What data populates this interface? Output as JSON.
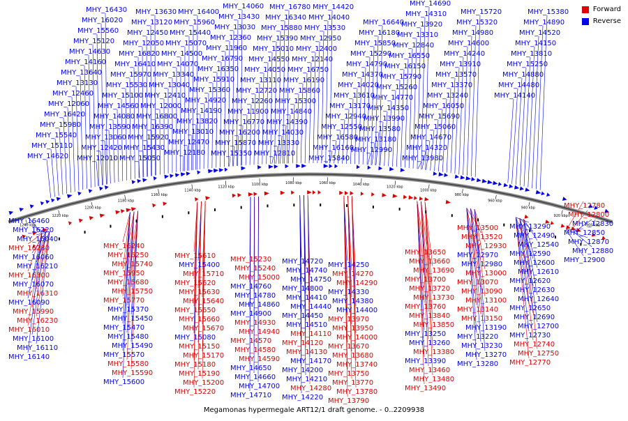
{
  "caption": "Megamonas hypermegale ART12/1 draft genome. - 0..2209938",
  "legend": {
    "forward_label": "Forward",
    "reverse_label": "Reverse",
    "forward_color": "#e00000",
    "reverse_color": "#0000ee"
  },
  "ticks": [
    "1240 kbp",
    "1220 kbp",
    "1200 kbp",
    "1180 kbp",
    "1160 kbp",
    "1140 kbp",
    "1120 kbp",
    "1100 kbp",
    "1080 kbp",
    "1060 kbp",
    "1040 kbp",
    "1020 kbp",
    "1000 kbp",
    "980 kbp",
    "960 kbp",
    "940 kbp",
    "920 kbp",
    "900 kbp"
  ],
  "top_labels": [
    "MHY_16430",
    "MHY_16020",
    "MHY_15560",
    "MHY_15120",
    "MHY_14630",
    "MHY_14160",
    "MHY_13640",
    "MHY_13130",
    "MHY_12460",
    "MHY_12060",
    "MHY_16420",
    "MHY_15980",
    "MHY_15540",
    "MHY_15110",
    "MHY_14620",
    "MHY_14090",
    "MHY_13630",
    "MHY_13120",
    "MHY_12450",
    "MHY_12050",
    "MHY_16820",
    "MHY_16410",
    "MHY_15970",
    "MHY_15530",
    "MHY_15100",
    "MHY_14560",
    "MHY_14080",
    "MHY_13590",
    "MHY_13060",
    "MHY_12420",
    "MHY_12010",
    "MHY_16810",
    "MHY_16400",
    "MHY_15960",
    "MHY_15440",
    "MHY_15070",
    "MHY_14500",
    "MHY_14070",
    "MHY_13340",
    "MHY_13040",
    "MHY_12410",
    "MHY_12000",
    "MHY_16800",
    "MHY_16390",
    "MHY_15920",
    "MHY_15430",
    "MHY_15050",
    "MHY_14460",
    "MHY_14060",
    "MHY_13430",
    "MHY_13030",
    "MHY_12360",
    "MHY_11960",
    "MHY_16790",
    "MHY_16350",
    "MHY_15910",
    "MHY_15360",
    "MHY_14920",
    "MHY_14190",
    "MHY_13820",
    "MHY_13010",
    "MHY_12470",
    "MHY_12180",
    "MHY_11710",
    "MHY_16780",
    "MHY_16340",
    "MHY_15880",
    "MHY_15390",
    "MHY_15010",
    "MHY_14550",
    "MHY_14050",
    "MHY_13110",
    "MHY_12720",
    "MHY_12260",
    "MHY_11900",
    "MHY_16770",
    "MHY_16200",
    "MHY_15870",
    "MHY_15350",
    "MHY_14850",
    "MHY_14420",
    "MHY_14040",
    "MHY_13530",
    "MHY_12950",
    "MHY_12400",
    "MHY_12140",
    "MHY_16750",
    "MHY_16190",
    "MHY_15860",
    "MHY_15300",
    "MHY_14840",
    "MHY_14390",
    "MHY_14030",
    "MHY_13330",
    "MHY_12810",
    "MHY_12320",
    "MHY_16640",
    "MHY_16180",
    "MHY_15850",
    "MHY_15290",
    "MHY_14790",
    "MHY_14370",
    "MHY_14020",
    "MHY_13610",
    "MHY_13170",
    "MHY_12940",
    "MHY_12550",
    "MHY_16580",
    "MHY_16160",
    "MHY_15840",
    "MHY_15420",
    "MHY_15090",
    "MHY_14690",
    "MHY_14310",
    "MHY_13920",
    "MHY_13310",
    "MHY_12840",
    "MHY_16550",
    "MHY_16150",
    "MHY_15790",
    "MHY_15260",
    "MHY_14770",
    "MHY_14350",
    "MHY_13990",
    "MHY_13580",
    "MHY_13180",
    "MHY_12990",
    "MHY_16130",
    "MHY_15720",
    "MHY_15320",
    "MHY_14980",
    "MHY_14600",
    "MHY_14240",
    "MHY_13910",
    "MHY_13570",
    "MHY_13370",
    "MHY_13240",
    "MHY_16050",
    "MHY_15690",
    "MHY_15060",
    "MHY_14670",
    "MHY_14320",
    "MHY_13980",
    "MHY_13440",
    "MHY_15380",
    "MHY_14890",
    "MHY_14520",
    "MHY_14150",
    "MHY_13810",
    "MHY_15250",
    "MHY_14880",
    "MHY_14480",
    "MHY_14140"
  ],
  "bottom_labels": [
    {
      "t": "MHY_16460",
      "d": "r"
    },
    {
      "t": "MHY_16220",
      "d": "r"
    },
    {
      "t": "MHY_16040",
      "d": "r"
    },
    {
      "t": "MHY_16280",
      "d": "f"
    },
    {
      "t": "MHY_16060",
      "d": "r"
    },
    {
      "t": "MHY_16210",
      "d": "r"
    },
    {
      "t": "MHY_16300",
      "d": "f"
    },
    {
      "t": "MHY_16070",
      "d": "r"
    },
    {
      "t": "MHY_16310",
      "d": "f"
    },
    {
      "t": "MHY_16090",
      "d": "r"
    },
    {
      "t": "MHY_15990",
      "d": "f"
    },
    {
      "t": "MHY_16230",
      "d": "f"
    },
    {
      "t": "MHY_16010",
      "d": "f"
    },
    {
      "t": "MHY_16100",
      "d": "r"
    },
    {
      "t": "MHY_16110",
      "d": "r"
    },
    {
      "t": "MHY_16140",
      "d": "r"
    },
    {
      "t": "MHY_16240",
      "d": "f"
    },
    {
      "t": "MHY_16250",
      "d": "f"
    },
    {
      "t": "MHY_15740",
      "d": "f"
    },
    {
      "t": "MHY_15950",
      "d": "f"
    },
    {
      "t": "MHY_15680",
      "d": "f"
    },
    {
      "t": "MHY_15750",
      "d": "f"
    },
    {
      "t": "MHY_15770",
      "d": "f"
    },
    {
      "t": "MHY_15370",
      "d": "r"
    },
    {
      "t": "MHY_15450",
      "d": "r"
    },
    {
      "t": "MHY_15470",
      "d": "r"
    },
    {
      "t": "MHY_15480",
      "d": "r"
    },
    {
      "t": "MHY_15490",
      "d": "r"
    },
    {
      "t": "MHY_15570",
      "d": "r"
    },
    {
      "t": "MHY_15580",
      "d": "f"
    },
    {
      "t": "MHY_15590",
      "d": "f"
    },
    {
      "t": "MHY_15600",
      "d": "r"
    },
    {
      "t": "MHY_15610",
      "d": "f"
    },
    {
      "t": "MHY_15400",
      "d": "r"
    },
    {
      "t": "MHY_15710",
      "d": "f"
    },
    {
      "t": "MHY_15620",
      "d": "f"
    },
    {
      "t": "MHY_15630",
      "d": "f"
    },
    {
      "t": "MHY_15640",
      "d": "f"
    },
    {
      "t": "MHY_15650",
      "d": "f"
    },
    {
      "t": "MHY_15660",
      "d": "f"
    },
    {
      "t": "MHY_15670",
      "d": "f"
    },
    {
      "t": "MHY_15080",
      "d": "r"
    },
    {
      "t": "MHY_15150",
      "d": "f"
    },
    {
      "t": "MHY_15170",
      "d": "f"
    },
    {
      "t": "MHY_15180",
      "d": "f"
    },
    {
      "t": "MHY_15190",
      "d": "f"
    },
    {
      "t": "MHY_15200",
      "d": "f"
    },
    {
      "t": "MHY_15220",
      "d": "f"
    },
    {
      "t": "MHY_15230",
      "d": "f"
    },
    {
      "t": "MHY_15240",
      "d": "f"
    },
    {
      "t": "MHY_15000",
      "d": "f"
    },
    {
      "t": "MHY_14760",
      "d": "r"
    },
    {
      "t": "MHY_14780",
      "d": "r"
    },
    {
      "t": "MHY_14860",
      "d": "r"
    },
    {
      "t": "MHY_14900",
      "d": "r"
    },
    {
      "t": "MHY_14930",
      "d": "f"
    },
    {
      "t": "MHY_14940",
      "d": "f"
    },
    {
      "t": "MHY_14570",
      "d": "f"
    },
    {
      "t": "MHY_14580",
      "d": "f"
    },
    {
      "t": "MHY_14590",
      "d": "f"
    },
    {
      "t": "MHY_14650",
      "d": "r"
    },
    {
      "t": "MHY_14660",
      "d": "r"
    },
    {
      "t": "MHY_14700",
      "d": "r"
    },
    {
      "t": "MHY_14710",
      "d": "r"
    },
    {
      "t": "MHY_14720",
      "d": "r"
    },
    {
      "t": "MHY_14740",
      "d": "r"
    },
    {
      "t": "MHY_14750",
      "d": "r"
    },
    {
      "t": "MHY_14800",
      "d": "r"
    },
    {
      "t": "MHY_14410",
      "d": "r"
    },
    {
      "t": "MHY_14440",
      "d": "r"
    },
    {
      "t": "MHY_14450",
      "d": "r"
    },
    {
      "t": "MHY_14510",
      "d": "r"
    },
    {
      "t": "MHY_14110",
      "d": "f"
    },
    {
      "t": "MHY_14120",
      "d": "f"
    },
    {
      "t": "MHY_14130",
      "d": "f"
    },
    {
      "t": "MHY_14170",
      "d": "r"
    },
    {
      "t": "MHY_14200",
      "d": "r"
    },
    {
      "t": "MHY_14210",
      "d": "r"
    },
    {
      "t": "MHY_14280",
      "d": "f"
    },
    {
      "t": "MHY_14220",
      "d": "r"
    },
    {
      "t": "MHY_14250",
      "d": "r"
    },
    {
      "t": "MHY_14270",
      "d": "f"
    },
    {
      "t": "MHY_14290",
      "d": "f"
    },
    {
      "t": "MHY_14330",
      "d": "r"
    },
    {
      "t": "MHY_14380",
      "d": "r"
    },
    {
      "t": "MHY_14400",
      "d": "r"
    },
    {
      "t": "MHY_13970",
      "d": "f"
    },
    {
      "t": "MHY_13950",
      "d": "f"
    },
    {
      "t": "MHY_14000",
      "d": "f"
    },
    {
      "t": "MHY_13670",
      "d": "f"
    },
    {
      "t": "MHY_13680",
      "d": "f"
    },
    {
      "t": "MHY_13740",
      "d": "f"
    },
    {
      "t": "MHY_13750",
      "d": "f"
    },
    {
      "t": "MHY_13770",
      "d": "f"
    },
    {
      "t": "MHY_13780",
      "d": "f"
    },
    {
      "t": "MHY_13790",
      "d": "f"
    },
    {
      "t": "MHY_13650",
      "d": "f"
    },
    {
      "t": "MHY_13660",
      "d": "f"
    },
    {
      "t": "MHY_13690",
      "d": "f"
    },
    {
      "t": "MHY_13700",
      "d": "f"
    },
    {
      "t": "MHY_13720",
      "d": "f"
    },
    {
      "t": "MHY_13730",
      "d": "f"
    },
    {
      "t": "MHY_13760",
      "d": "f"
    },
    {
      "t": "MHY_13840",
      "d": "f"
    },
    {
      "t": "MHY_13850",
      "d": "f"
    },
    {
      "t": "MHY_13250",
      "d": "r"
    },
    {
      "t": "MHY_13260",
      "d": "r"
    },
    {
      "t": "MHY_13380",
      "d": "f"
    },
    {
      "t": "MHY_13390",
      "d": "r"
    },
    {
      "t": "MHY_13460",
      "d": "f"
    },
    {
      "t": "MHY_13480",
      "d": "f"
    },
    {
      "t": "MHY_13490",
      "d": "f"
    },
    {
      "t": "MHY_13500",
      "d": "f"
    },
    {
      "t": "MHY_13520",
      "d": "f"
    },
    {
      "t": "MHY_12930",
      "d": "f"
    },
    {
      "t": "MHY_12970",
      "d": "r"
    },
    {
      "t": "MHY_12980",
      "d": "r"
    },
    {
      "t": "MHY_13000",
      "d": "f"
    },
    {
      "t": "MHY_13070",
      "d": "f"
    },
    {
      "t": "MHY_13090",
      "d": "f"
    },
    {
      "t": "MHY_13100",
      "d": "f"
    },
    {
      "t": "MHY_13140",
      "d": "f"
    },
    {
      "t": "MHY_13150",
      "d": "f"
    },
    {
      "t": "MHY_13190",
      "d": "r"
    },
    {
      "t": "MHY_13220",
      "d": "r"
    },
    {
      "t": "MHY_13230",
      "d": "r"
    },
    {
      "t": "MHY_13270",
      "d": "r"
    },
    {
      "t": "MHY_13280",
      "d": "r"
    },
    {
      "t": "MHY_13290",
      "d": "r"
    },
    {
      "t": "MHY_12490",
      "d": "r"
    },
    {
      "t": "MHY_12540",
      "d": "r"
    },
    {
      "t": "MHY_12590",
      "d": "r"
    },
    {
      "t": "MHY_12600",
      "d": "r"
    },
    {
      "t": "MHY_12610",
      "d": "r"
    },
    {
      "t": "MHY_12620",
      "d": "r"
    },
    {
      "t": "MHY_12630",
      "d": "r"
    },
    {
      "t": "MHY_12640",
      "d": "r"
    },
    {
      "t": "MHY_12650",
      "d": "r"
    },
    {
      "t": "MHY_12690",
      "d": "r"
    },
    {
      "t": "MHY_12700",
      "d": "r"
    },
    {
      "t": "MHY_12730",
      "d": "r"
    },
    {
      "t": "MHY_12740",
      "d": "f"
    },
    {
      "t": "MHY_12750",
      "d": "f"
    },
    {
      "t": "MHY_12770",
      "d": "f"
    },
    {
      "t": "MHY_12780",
      "d": "f"
    },
    {
      "t": "MHY_12800",
      "d": "f"
    },
    {
      "t": "MHY_12830",
      "d": "r"
    },
    {
      "t": "MHY_12850",
      "d": "r"
    },
    {
      "t": "MHY_12870",
      "d": "r"
    },
    {
      "t": "MHY_12880",
      "d": "r"
    },
    {
      "t": "MHY_12900",
      "d": "r"
    }
  ]
}
